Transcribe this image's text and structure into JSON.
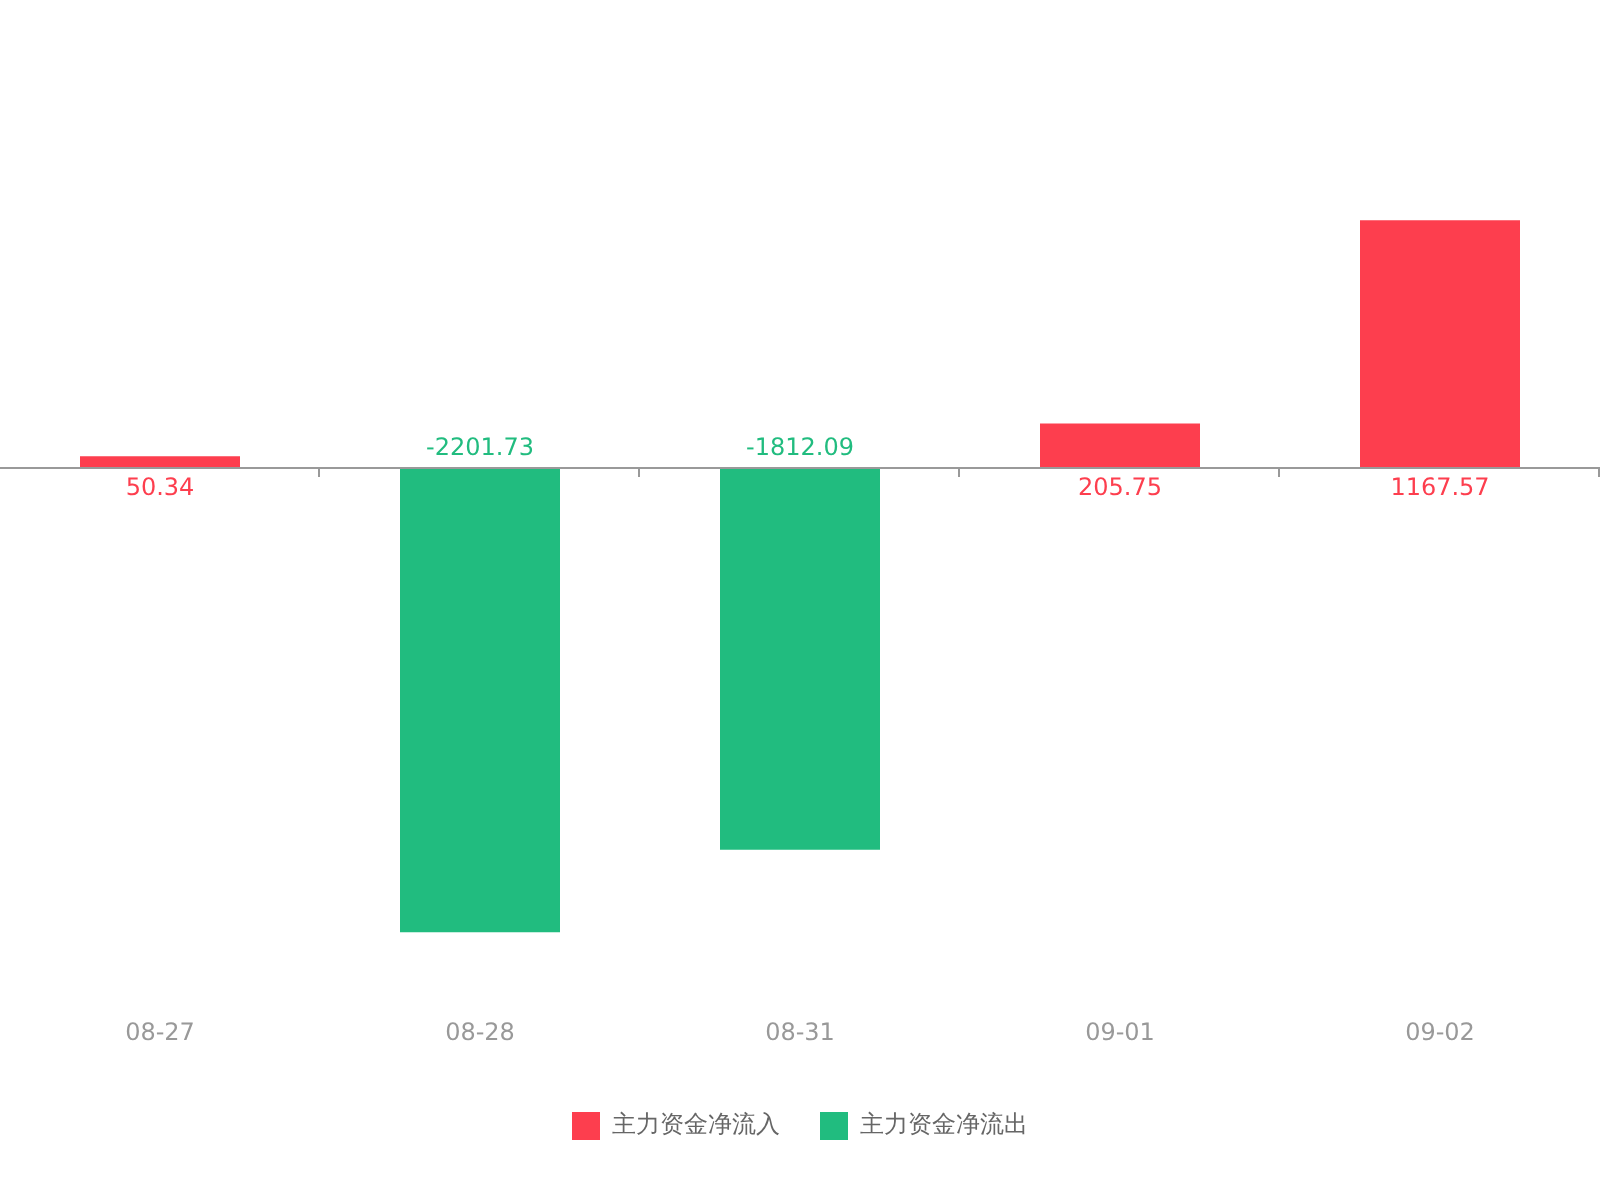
{
  "chart_data": {
    "type": "bar",
    "categories": [
      "08-27",
      "08-28",
      "08-31",
      "09-01",
      "09-02"
    ],
    "series": [
      {
        "name": "主力资金净流入",
        "color": "#fd3e4e",
        "values": [
          50.34,
          null,
          null,
          205.75,
          1167.57
        ]
      },
      {
        "name": "主力资金净流出",
        "color": "#21bc7f",
        "values": [
          null,
          -2201.73,
          -1812.09,
          null,
          null
        ]
      }
    ],
    "data_labels": true,
    "legend": "bottom",
    "tick_labels": "x"
  }
}
